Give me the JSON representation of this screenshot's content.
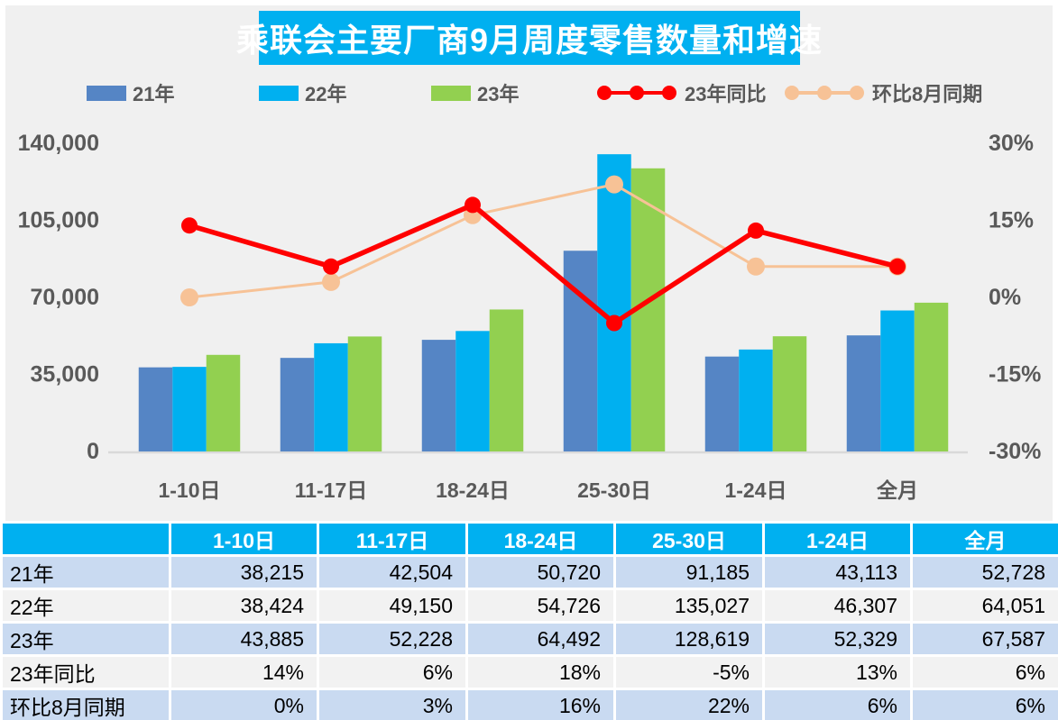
{
  "title": "乘联会主要厂商9月周度零售数量和增速",
  "legend": [
    {
      "label": "21年",
      "type": "bar",
      "color": "#5585C5"
    },
    {
      "label": "22年",
      "type": "bar",
      "color": "#00B0F0"
    },
    {
      "label": "23年",
      "type": "bar",
      "color": "#92D050"
    },
    {
      "label": "23年同比",
      "type": "line",
      "color": "#FF0000"
    },
    {
      "label": "环比8月同期",
      "type": "line",
      "color": "#F7C296"
    }
  ],
  "chart_data": {
    "type": "bar+line combo",
    "title": "乘联会主要厂商9月周度零售数量和增速",
    "categories": [
      "1-10日",
      "11-17日",
      "18-24日",
      "25-30日",
      "1-24日",
      "全月"
    ],
    "bar_series": [
      {
        "name": "21年",
        "color": "#5585C5",
        "values": [
          38215,
          42504,
          50720,
          91185,
          43113,
          52728
        ]
      },
      {
        "name": "22年",
        "color": "#00B0F0",
        "values": [
          38424,
          49150,
          54726,
          135027,
          46307,
          64051
        ]
      },
      {
        "name": "23年",
        "color": "#92D050",
        "values": [
          43885,
          52228,
          64492,
          128619,
          52329,
          67587
        ]
      }
    ],
    "line_series": [
      {
        "name": "23年同比",
        "color": "#FF0000",
        "values_pct": [
          14,
          6,
          18,
          -5,
          13,
          6
        ]
      },
      {
        "name": "环比8月同期",
        "color": "#F7C296",
        "values_pct": [
          0,
          3,
          16,
          22,
          6,
          6
        ]
      }
    ],
    "left_axis": {
      "ticks": [
        "140,000",
        "105,000",
        "70,000",
        "35,000",
        "0"
      ],
      "tick_values": [
        140000,
        105000,
        70000,
        35000,
        0
      ],
      "min": 0,
      "max": 140000
    },
    "right_axis": {
      "ticks": [
        "30%",
        "15%",
        "0%",
        "-15%",
        "-30%"
      ],
      "tick_values": [
        30,
        15,
        0,
        -15,
        -30
      ],
      "min": -30,
      "max": 30
    },
    "grid": false,
    "legend_position": "top",
    "plot_background": "#F0F0F0"
  },
  "table": {
    "header": [
      "",
      "1-10日",
      "11-17日",
      "18-24日",
      "25-30日",
      "1-24日",
      "全月"
    ],
    "rows": [
      {
        "label": "21年",
        "cells": [
          "38,215",
          "42,504",
          "50,720",
          "91,185",
          "43,113",
          "52,728"
        ]
      },
      {
        "label": "22年",
        "cells": [
          "38,424",
          "49,150",
          "54,726",
          "135,027",
          "46,307",
          "64,051"
        ]
      },
      {
        "label": "23年",
        "cells": [
          "43,885",
          "52,228",
          "64,492",
          "128,619",
          "52,329",
          "67,587"
        ]
      },
      {
        "label": "23年同比",
        "cells": [
          "14%",
          "6%",
          "18%",
          "-5%",
          "13%",
          "6%"
        ]
      },
      {
        "label": "环比8月同期",
        "cells": [
          "0%",
          "3%",
          "16%",
          "22%",
          "6%",
          "6%"
        ]
      }
    ]
  },
  "colors": {
    "title_bar": "#00B0F0",
    "header_bg": "#00B0F0",
    "row_blue": "#C9DAF1",
    "row_gray": "#F2F2F2",
    "axis_text": "#595959",
    "baseline": "#D9D9D9",
    "chart_background": "#F0F0F0"
  }
}
